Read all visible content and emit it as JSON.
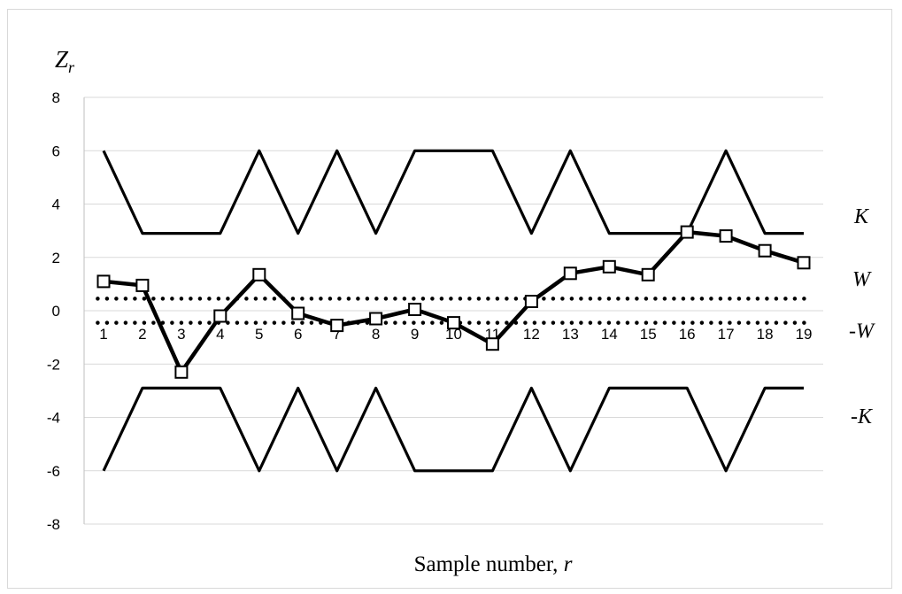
{
  "chart_data": {
    "type": "line",
    "ylabel_main": "Z",
    "ylabel_sub": "r",
    "xlabel_text": "Sample number, ",
    "xlabel_var": "r",
    "ylim": [
      -8,
      8
    ],
    "yticks": [
      "8",
      "6",
      "4",
      "2",
      "0",
      "-2",
      "-4",
      "-6",
      "-8"
    ],
    "ytick_values": [
      8,
      6,
      4,
      2,
      0,
      -2,
      -4,
      -6,
      -8
    ],
    "categories": [
      "1",
      "2",
      "3",
      "4",
      "5",
      "6",
      "7",
      "8",
      "9",
      "10",
      "11",
      "12",
      "13",
      "14",
      "15",
      "16",
      "17",
      "18",
      "19"
    ],
    "grid": "horizontal",
    "series": [
      {
        "name": "K",
        "role": "upper-limit",
        "values": [
          6,
          2.9,
          2.9,
          2.9,
          6,
          2.9,
          6,
          2.9,
          6,
          6,
          6,
          2.9,
          6,
          2.9,
          2.9,
          2.9,
          6,
          2.9,
          2.9
        ]
      },
      {
        "name": "-K",
        "role": "lower-limit",
        "values": [
          -6,
          -2.9,
          -2.9,
          -2.9,
          -6,
          -2.9,
          -6,
          -2.9,
          -6,
          -6,
          -6,
          -2.9,
          -6,
          -2.9,
          -2.9,
          -2.9,
          -6,
          -2.9,
          -2.9
        ]
      },
      {
        "name": "W",
        "role": "warning-upper",
        "values": [
          0.45,
          0.45,
          0.45,
          0.45,
          0.45,
          0.45,
          0.45,
          0.45,
          0.45,
          0.45,
          0.45,
          0.45,
          0.45,
          0.45,
          0.45,
          0.45,
          0.45,
          0.45,
          0.45
        ]
      },
      {
        "name": "-W",
        "role": "warning-lower",
        "values": [
          -0.45,
          -0.45,
          -0.45,
          -0.45,
          -0.45,
          -0.45,
          -0.45,
          -0.45,
          -0.45,
          -0.45,
          -0.45,
          -0.45,
          -0.45,
          -0.45,
          -0.45,
          -0.45,
          -0.45,
          -0.45,
          -0.45
        ]
      },
      {
        "name": "Z_r",
        "role": "statistic",
        "values": [
          1.1,
          0.95,
          -2.3,
          -0.2,
          1.35,
          -0.1,
          -0.55,
          -0.3,
          0.05,
          -0.45,
          -1.25,
          0.35,
          1.4,
          1.65,
          1.35,
          2.95,
          2.8,
          2.25,
          1.8
        ]
      }
    ],
    "right_labels": [
      {
        "text": "K",
        "value": 3.55
      },
      {
        "text": "W",
        "value": 1.2
      },
      {
        "text": "-W",
        "value": -0.75
      },
      {
        "text": "-K",
        "value": -3.95
      }
    ],
    "colors": {
      "line": "#000000",
      "grid": "#d9d9d9",
      "frame": "#d9d9d9"
    }
  }
}
